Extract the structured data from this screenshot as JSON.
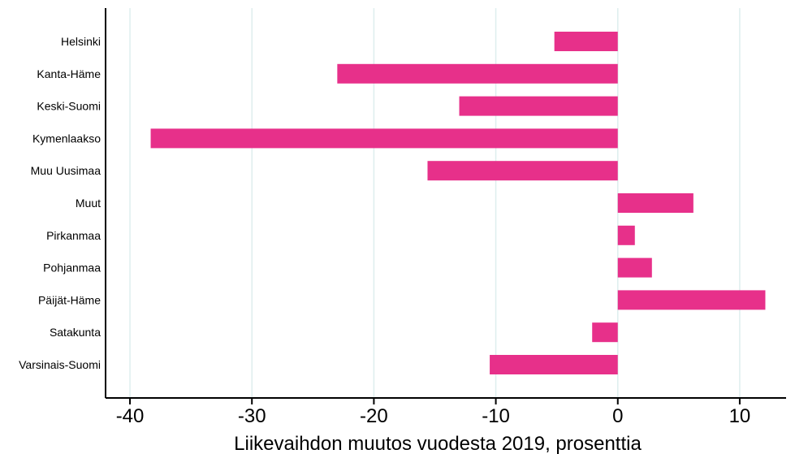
{
  "chart_data": {
    "type": "bar",
    "orientation": "horizontal",
    "title": "",
    "xlabel": "Liikevaihdon muutos vuodesta 2019, prosenttia",
    "ylabel": "",
    "categories": [
      "Helsinki",
      "Kanta-Häme",
      "Keski-Suomi",
      "Kymenlaakso",
      "Muu Uusimaa",
      "Muut",
      "Pirkanmaa",
      "Pohjanmaa",
      "Päijät-Häme",
      "Satakunta",
      "Varsinais-Suomi"
    ],
    "values": [
      -5.2,
      -23.0,
      -13.0,
      -38.3,
      -15.6,
      6.2,
      1.4,
      2.8,
      12.1,
      -2.1,
      -10.5
    ],
    "xlim": [
      -42,
      13.8
    ],
    "xticks": [
      -40,
      -30,
      -20,
      -10,
      0,
      10
    ],
    "xtick_labels": [
      "-40",
      "-30",
      "-20",
      "-10",
      "0",
      "10"
    ],
    "grid": true,
    "legend": "none",
    "colors": {
      "bar": "#e7308a",
      "grid": "#deeeee",
      "axis": "#000000"
    }
  }
}
